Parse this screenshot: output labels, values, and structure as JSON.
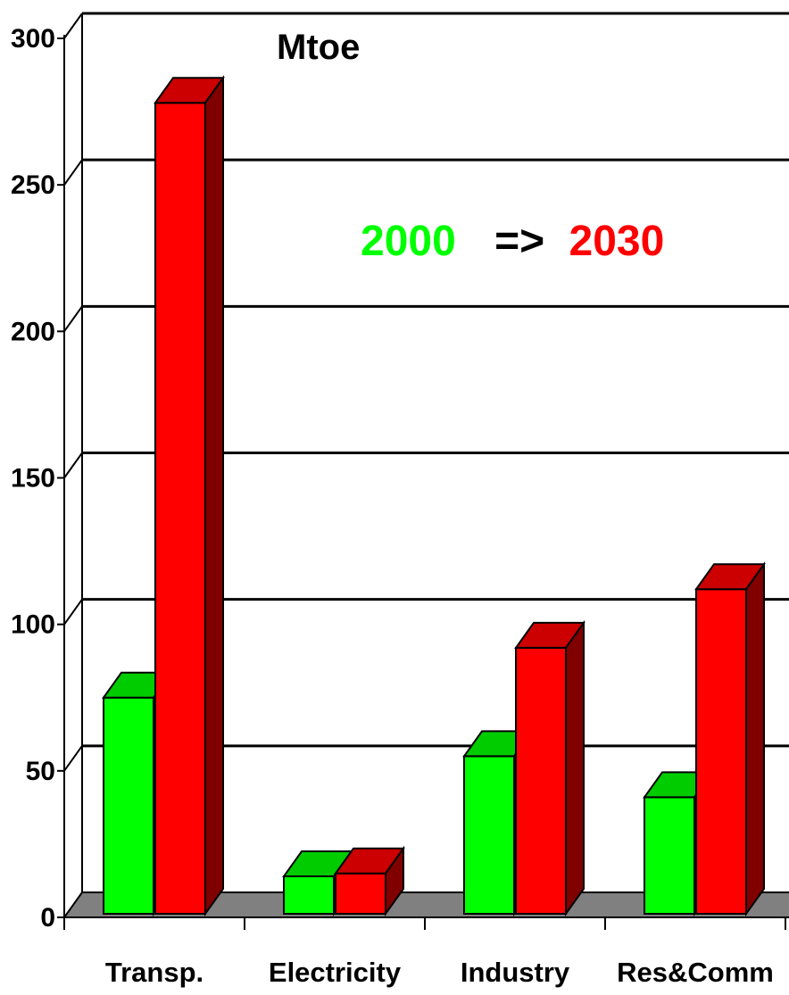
{
  "chart_data": {
    "type": "bar",
    "title": "",
    "unit_label": "Mtoe",
    "categories": [
      "Transp.",
      "Electricity",
      "Industry",
      "Res&Comm"
    ],
    "series": [
      {
        "name": "2000",
        "color": "#00ff00",
        "values": [
          75,
          14,
          55,
          41
        ]
      },
      {
        "name": "2030",
        "color": "#ff0000",
        "values": [
          278,
          15,
          92,
          112
        ]
      }
    ],
    "legend": {
      "first": "2000",
      "arrow": "=>",
      "second": "2030"
    },
    "ylim": [
      0,
      300
    ],
    "yticks": [
      "0",
      "50",
      "100",
      "150",
      "200",
      "250",
      "300"
    ],
    "grid": true
  }
}
